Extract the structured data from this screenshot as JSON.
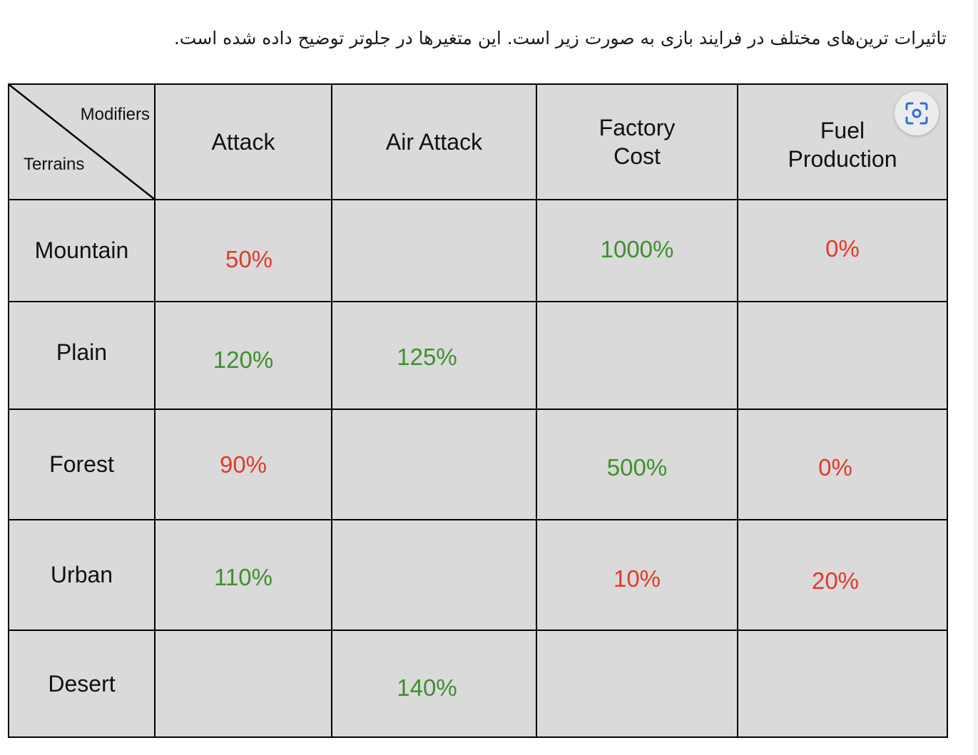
{
  "intro_text": "تاثیرات ترین‌های مختلف در فرایند بازی به صورت زیر است. این متغیرها در جلوتر توضیح داده شده است.",
  "table": {
    "corner_top": "Modifiers",
    "corner_bottom": "Terrains",
    "columns": [
      {
        "line1": "Attack",
        "line2": ""
      },
      {
        "line1": "Air Attack",
        "line2": ""
      },
      {
        "line1": "Factory",
        "line2": "Cost"
      },
      {
        "line1": "Fuel",
        "line2": "Production"
      }
    ],
    "rows": [
      {
        "terrain": "Mountain",
        "cells": [
          {
            "text": "50%",
            "tone": "red"
          },
          {
            "text": "",
            "tone": ""
          },
          {
            "text": "1000%",
            "tone": "green"
          },
          {
            "text": "0%",
            "tone": "red"
          }
        ]
      },
      {
        "terrain": "Plain",
        "cells": [
          {
            "text": "120%",
            "tone": "green"
          },
          {
            "text": "125%",
            "tone": "green"
          },
          {
            "text": "",
            "tone": ""
          },
          {
            "text": "",
            "tone": ""
          }
        ]
      },
      {
        "terrain": "Forest",
        "cells": [
          {
            "text": "90%",
            "tone": "red"
          },
          {
            "text": "",
            "tone": ""
          },
          {
            "text": "500%",
            "tone": "green"
          },
          {
            "text": "0%",
            "tone": "red"
          }
        ]
      },
      {
        "terrain": "Urban",
        "cells": [
          {
            "text": "110%",
            "tone": "green"
          },
          {
            "text": "",
            "tone": ""
          },
          {
            "text": "10%",
            "tone": "red"
          },
          {
            "text": "20%",
            "tone": "red"
          }
        ]
      },
      {
        "terrain": "Desert",
        "cells": [
          {
            "text": "",
            "tone": ""
          },
          {
            "text": "140%",
            "tone": "green"
          },
          {
            "text": "",
            "tone": ""
          },
          {
            "text": "",
            "tone": ""
          }
        ]
      }
    ]
  },
  "colors": {
    "increase": "#3f8f2e",
    "decrease": "#e13a2b",
    "cell_background": "#dadada"
  },
  "icons": {
    "lens": "visual-search-icon"
  }
}
